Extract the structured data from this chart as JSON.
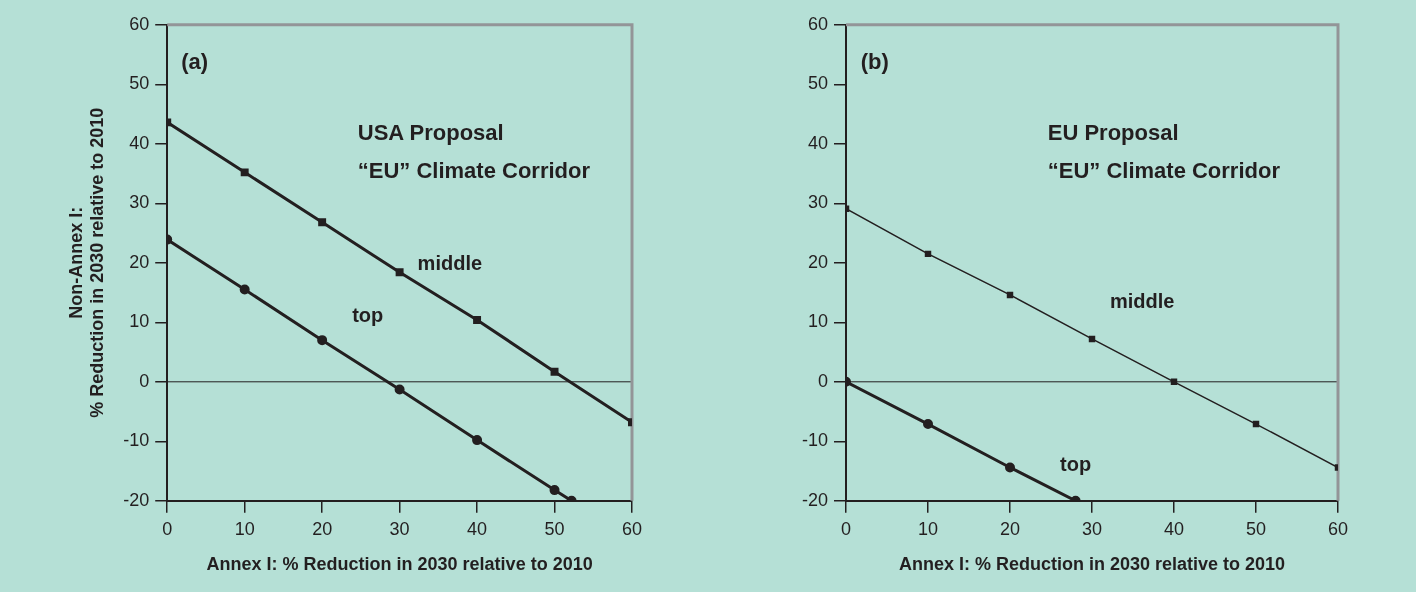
{
  "chart_data": [
    {
      "type": "line",
      "xlabel": "Annex I: % Reduction in 2030 relative to 2010",
      "ylabel": "Non-Annex I:\n% Reduction in 2030 relative to 2010",
      "annotations": [
        "(a)",
        "USA Proposal",
        "“EU” Climate Corridor"
      ],
      "x": [
        0,
        10,
        20,
        30,
        40,
        50,
        60
      ],
      "xlim": [
        0,
        60
      ],
      "xticks": [
        0,
        10,
        20,
        30,
        40,
        50,
        60
      ],
      "ylim": [
        -20,
        60
      ],
      "yticks": [
        -20,
        -10,
        0,
        10,
        20,
        30,
        40,
        50,
        60
      ],
      "grid": false,
      "legend": false,
      "ref_lines": [
        {
          "axis": "y",
          "value": 0
        }
      ],
      "series": [
        {
          "name": "middle",
          "color": "#231f20",
          "marker": "square",
          "values": [
            43.6,
            35.2,
            26.8,
            18.4,
            10.4,
            1.7,
            -6.8
          ]
        },
        {
          "name": "top",
          "color": "#231f20",
          "marker": "circle",
          "x": [
            0,
            10,
            20,
            30,
            40,
            50,
            52.2
          ],
          "values": [
            23.9,
            15.5,
            7.0,
            -1.3,
            -9.8,
            -18.2,
            -20
          ]
        }
      ]
    },
    {
      "type": "line",
      "xlabel": "Annex I: % Reduction in 2030 relative to 2010",
      "annotations": [
        "(b)",
        "EU Proposal",
        "“EU” Climate Corridor"
      ],
      "x": [
        0,
        10,
        20,
        30,
        40,
        50,
        60
      ],
      "xlim": [
        0,
        60
      ],
      "xticks": [
        0,
        10,
        20,
        30,
        40,
        50,
        60
      ],
      "ylim": [
        -20,
        60
      ],
      "yticks": [
        -20,
        -10,
        0,
        10,
        20,
        30,
        40,
        50,
        60
      ],
      "grid": false,
      "legend": false,
      "ref_lines": [
        {
          "axis": "y",
          "value": 0
        }
      ],
      "series": [
        {
          "name": "middle",
          "color": "#231f20",
          "marker": "square",
          "values": [
            29.1,
            21.5,
            14.6,
            7.2,
            0,
            -7.1,
            -14.4
          ]
        },
        {
          "name": "top",
          "color": "#231f20",
          "marker": "circle",
          "x": [
            0,
            10,
            20,
            28
          ],
          "values": [
            0,
            -7.1,
            -14.4,
            -20
          ]
        }
      ]
    }
  ]
}
